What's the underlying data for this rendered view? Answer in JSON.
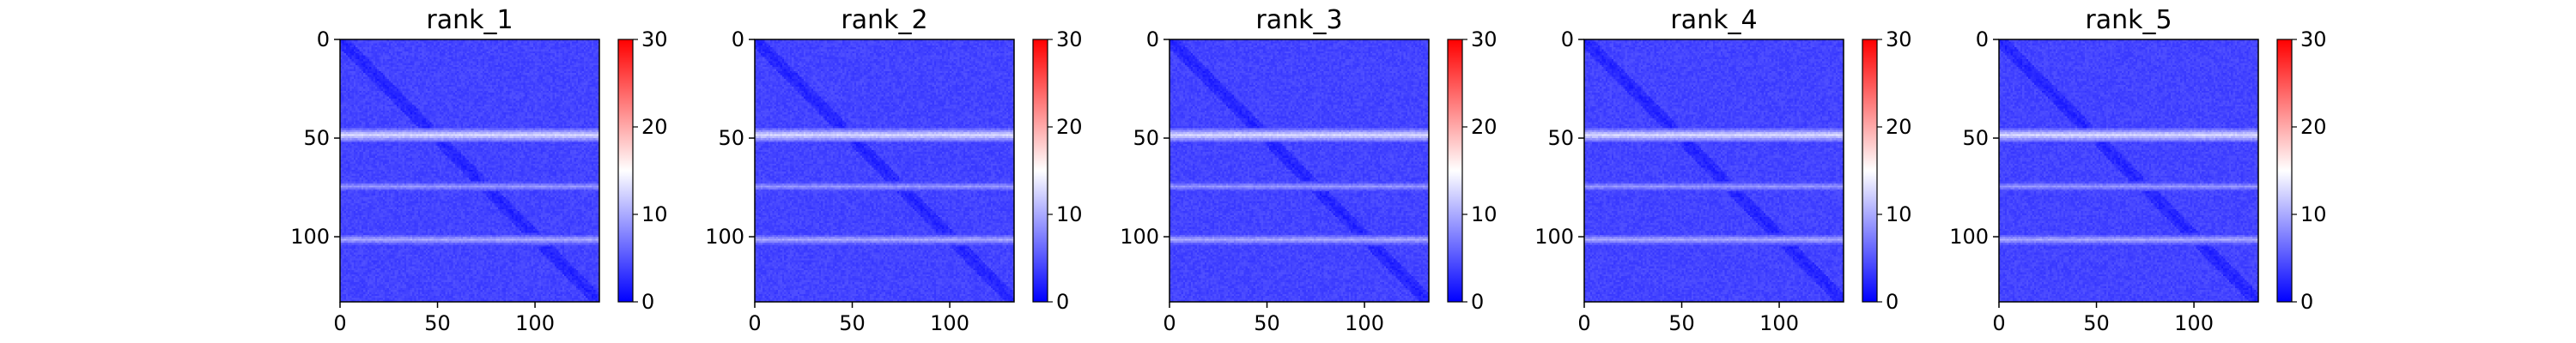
{
  "chart_data": [
    {
      "type": "heatmap",
      "title": "rank_1",
      "xlabel": "",
      "ylabel": "",
      "matrix_size": 133,
      "x_ticks": [
        0,
        50,
        100
      ],
      "y_ticks": [
        0,
        50,
        100
      ],
      "xlim": [
        0,
        133
      ],
      "ylim": [
        133,
        0
      ],
      "colorbar": {
        "range": [
          0,
          30
        ],
        "ticks": [
          0,
          10,
          20,
          30
        ],
        "colormap": "bwr"
      },
      "pattern": {
        "base_value": 4,
        "diagonal_value": 2,
        "bright_rows": [
          {
            "index": 48,
            "value": 13
          },
          {
            "index": 74,
            "value": 9
          },
          {
            "index": 101,
            "value": 10
          }
        ],
        "bright_cols": [
          {
            "index": 48,
            "value": 4
          },
          {
            "index": 74,
            "value": 3
          },
          {
            "index": 101,
            "value": 3
          }
        ]
      }
    },
    {
      "type": "heatmap",
      "title": "rank_2",
      "xlabel": "",
      "ylabel": "",
      "matrix_size": 133,
      "x_ticks": [
        0,
        50,
        100
      ],
      "y_ticks": [
        0,
        50,
        100
      ],
      "xlim": [
        0,
        133
      ],
      "ylim": [
        133,
        0
      ],
      "colorbar": {
        "range": [
          0,
          30
        ],
        "ticks": [
          0,
          10,
          20,
          30
        ],
        "colormap": "bwr"
      },
      "pattern": {
        "base_value": 4,
        "diagonal_value": 2,
        "bright_rows": [
          {
            "index": 48,
            "value": 13
          },
          {
            "index": 74,
            "value": 9
          },
          {
            "index": 101,
            "value": 10
          }
        ],
        "bright_cols": [
          {
            "index": 48,
            "value": 4
          },
          {
            "index": 74,
            "value": 3
          },
          {
            "index": 101,
            "value": 3
          }
        ]
      }
    },
    {
      "type": "heatmap",
      "title": "rank_3",
      "xlabel": "",
      "ylabel": "",
      "matrix_size": 133,
      "x_ticks": [
        0,
        50,
        100
      ],
      "y_ticks": [
        0,
        50,
        100
      ],
      "xlim": [
        0,
        133
      ],
      "ylim": [
        133,
        0
      ],
      "colorbar": {
        "range": [
          0,
          30
        ],
        "ticks": [
          0,
          10,
          20,
          30
        ],
        "colormap": "bwr"
      },
      "pattern": {
        "base_value": 4,
        "diagonal_value": 2,
        "bright_rows": [
          {
            "index": 48,
            "value": 13
          },
          {
            "index": 74,
            "value": 9
          },
          {
            "index": 101,
            "value": 10
          }
        ],
        "bright_cols": [
          {
            "index": 48,
            "value": 4
          },
          {
            "index": 74,
            "value": 3
          },
          {
            "index": 101,
            "value": 3
          }
        ]
      }
    },
    {
      "type": "heatmap",
      "title": "rank_4",
      "xlabel": "",
      "ylabel": "",
      "matrix_size": 133,
      "x_ticks": [
        0,
        50,
        100
      ],
      "y_ticks": [
        0,
        50,
        100
      ],
      "xlim": [
        0,
        133
      ],
      "ylim": [
        133,
        0
      ],
      "colorbar": {
        "range": [
          0,
          30
        ],
        "ticks": [
          0,
          10,
          20,
          30
        ],
        "colormap": "bwr"
      },
      "pattern": {
        "base_value": 4,
        "diagonal_value": 2,
        "bright_rows": [
          {
            "index": 48,
            "value": 13
          },
          {
            "index": 74,
            "value": 9
          },
          {
            "index": 101,
            "value": 10
          }
        ],
        "bright_cols": [
          {
            "index": 48,
            "value": 4
          },
          {
            "index": 74,
            "value": 3
          },
          {
            "index": 101,
            "value": 3
          }
        ]
      }
    },
    {
      "type": "heatmap",
      "title": "rank_5",
      "xlabel": "",
      "ylabel": "",
      "matrix_size": 133,
      "x_ticks": [
        0,
        50,
        100
      ],
      "y_ticks": [
        0,
        50,
        100
      ],
      "xlim": [
        0,
        133
      ],
      "ylim": [
        133,
        0
      ],
      "colorbar": {
        "range": [
          0,
          30
        ],
        "ticks": [
          0,
          10,
          20,
          30
        ],
        "colormap": "bwr"
      },
      "pattern": {
        "base_value": 4,
        "diagonal_value": 2,
        "bright_rows": [
          {
            "index": 48,
            "value": 13
          },
          {
            "index": 74,
            "value": 9
          },
          {
            "index": 101,
            "value": 10
          }
        ],
        "bright_cols": [
          {
            "index": 48,
            "value": 4
          },
          {
            "index": 74,
            "value": 3
          },
          {
            "index": 101,
            "value": 3
          }
        ]
      }
    }
  ]
}
